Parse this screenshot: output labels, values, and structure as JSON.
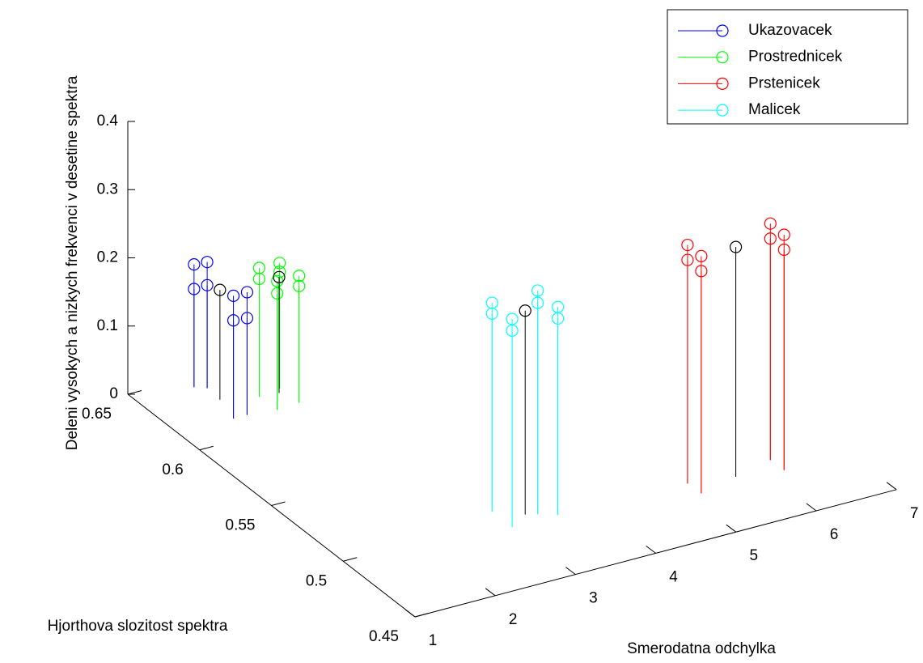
{
  "chart_data": {
    "type": "stem3",
    "xlabel": "Smerodatna odchylka",
    "ylabel": "Hjorthova slozitost spektra",
    "zlabel": "Deleni vysokych a nizkych frekvenci v desetine spektra",
    "xlim": [
      1,
      7
    ],
    "ylim": [
      0.45,
      0.65
    ],
    "zlim": [
      0,
      0.4
    ],
    "xticks": [
      1,
      2,
      3,
      4,
      5,
      6,
      7
    ],
    "yticks": [
      0.45,
      0.5,
      0.55,
      0.6,
      0.65
    ],
    "zticks": [
      0,
      0.1,
      0.2,
      0.3,
      0.4
    ],
    "legend": "top-right",
    "series": [
      {
        "name": "Ukazovacek",
        "color": "#0000ff",
        "x": [
          1.7,
          1.7,
          1.81,
          1.81,
          1.69,
          1.69,
          1.86,
          1.86
        ],
        "y": [
          0.643,
          0.643,
          0.64,
          0.64,
          0.615,
          0.615,
          0.615,
          0.615
        ],
        "z": [
          0.18,
          0.144,
          0.185,
          0.151,
          0.18,
          0.144,
          0.18,
          0.142
        ]
      },
      {
        "name": "Prostrednicek",
        "color": "#00ff00",
        "x": [
          2.19,
          2.19,
          2.48,
          2.48,
          2.2,
          2.2,
          2.49,
          2.49
        ],
        "y": [
          0.625,
          0.625,
          0.627,
          0.627,
          0.613,
          0.613,
          0.614,
          0.614
        ],
        "z": [
          0.189,
          0.173,
          0.184,
          0.171,
          0.189,
          0.171,
          0.186,
          0.171
        ]
      },
      {
        "name": "Prstenicek",
        "color": "#ff0000",
        "x": [
          5.13,
          5.13,
          5.14,
          5.14,
          6.18,
          6.18,
          6.19,
          6.19
        ],
        "y": [
          0.491,
          0.491,
          0.482,
          0.482,
          0.492,
          0.492,
          0.483,
          0.483
        ],
        "z": [
          0.35,
          0.328,
          0.348,
          0.326,
          0.347,
          0.325,
          0.345,
          0.323
        ]
      },
      {
        "name": "Malicek",
        "color": "#00ffff",
        "x": [
          2.98,
          2.98,
          2.98,
          2.98,
          3.37,
          3.37,
          3.55,
          3.55
        ],
        "y": [
          0.507,
          0.507,
          0.493,
          0.493,
          0.497,
          0.497,
          0.493,
          0.493
        ],
        "z": [
          0.306,
          0.29,
          0.305,
          0.288,
          0.328,
          0.31,
          0.305,
          0.288
        ]
      },
      {
        "color": "#000000",
        "x": [
          1.79,
          2.42,
          3.25,
          5.66
        ],
        "y": [
          0.63,
          0.624,
          0.499,
          0.487
        ],
        "z": [
          0.161,
          0.17,
          0.299,
          0.337
        ]
      }
    ]
  }
}
